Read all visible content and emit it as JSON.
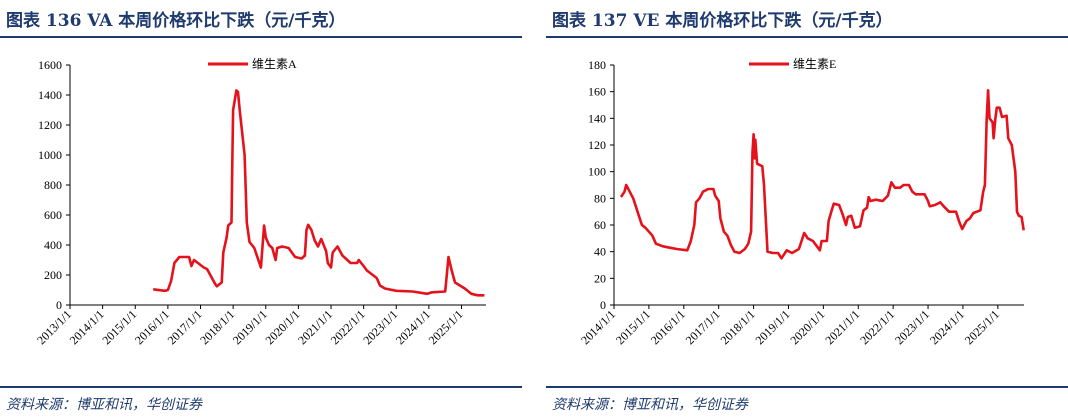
{
  "colors": {
    "accent": "#1f3a6e",
    "line": "#e5121b"
  },
  "chart_data": [
    {
      "type": "line",
      "title": "图表 136 VA 本周价格环比下跌（元/千克）",
      "source": "资料来源：博亚和讯，华创证券",
      "legend": "维生素A",
      "legend_position": "top-center",
      "ylim": [
        0,
        1600
      ],
      "yticks": [
        0,
        200,
        400,
        600,
        800,
        1000,
        1200,
        1400,
        1600
      ],
      "xlim": [
        2013,
        2025.75
      ],
      "xticks": [
        "2013/1/1",
        "2014/1/1",
        "2015/1/1",
        "2016/1/1",
        "2017/1/1",
        "2018/1/1",
        "2019/1/1",
        "2020/1/1",
        "2021/1/1",
        "2022/1/1",
        "2023/1/1",
        "2024/1/1",
        "2025/1/1"
      ],
      "x": [
        2015.55,
        2015.9,
        2016.0,
        2016.1,
        2016.2,
        2016.35,
        2016.65,
        2016.72,
        2016.8,
        2017.1,
        2017.2,
        2017.45,
        2017.5,
        2017.65,
        2017.7,
        2017.8,
        2017.85,
        2017.95,
        2017.97,
        2018.0,
        2018.1,
        2018.15,
        2018.2,
        2018.35,
        2018.42,
        2018.5,
        2018.65,
        2018.85,
        2018.95,
        2019.0,
        2019.1,
        2019.2,
        2019.3,
        2019.35,
        2019.5,
        2019.7,
        2019.9,
        2020.1,
        2020.2,
        2020.25,
        2020.3,
        2020.4,
        2020.5,
        2020.6,
        2020.7,
        2020.85,
        2020.9,
        2021.0,
        2021.05,
        2021.2,
        2021.35,
        2021.5,
        2021.6,
        2021.8,
        2021.85,
        2022.0,
        2022.1,
        2022.4,
        2022.5,
        2022.65,
        2023.0,
        2023.5,
        2023.95,
        2024.1,
        2024.5,
        2024.6,
        2024.7,
        2024.8,
        2024.95,
        2025.1,
        2025.3,
        2025.5,
        2025.7
      ],
      "y": [
        105,
        95,
        100,
        160,
        280,
        320,
        320,
        260,
        300,
        250,
        240,
        140,
        125,
        150,
        350,
        450,
        530,
        550,
        900,
        1300,
        1430,
        1420,
        1300,
        1000,
        550,
        420,
        380,
        250,
        530,
        450,
        400,
        380,
        300,
        380,
        390,
        380,
        320,
        310,
        330,
        500,
        535,
        500,
        430,
        390,
        440,
        360,
        280,
        250,
        350,
        390,
        330,
        300,
        280,
        280,
        300,
        260,
        230,
        180,
        130,
        110,
        95,
        90,
        75,
        85,
        90,
        320,
        230,
        150,
        130,
        110,
        75,
        65,
        65
      ]
    },
    {
      "type": "line",
      "title": "图表 137 VE 本周价格环比下跌（元/千克）",
      "source": "资料来源：博亚和讯，华创证券",
      "legend": "维生素E",
      "legend_position": "top-center",
      "ylim": [
        0,
        180
      ],
      "yticks": [
        0,
        20,
        40,
        60,
        80,
        100,
        120,
        140,
        160,
        180
      ],
      "xlim": [
        2014,
        2025.75
      ],
      "xticks": [
        "2014/1/1",
        "2015/1/1",
        "2016/1/1",
        "2017/1/1",
        "2018/1/1",
        "2019/1/1",
        "2020/1/1",
        "2021/1/1",
        "2022/1/1",
        "2023/1/1",
        "2024/1/1",
        "2025/1/1"
      ],
      "x": [
        2014.2,
        2014.3,
        2014.35,
        2014.45,
        2014.55,
        2014.7,
        2014.8,
        2014.9,
        2015.1,
        2015.2,
        2015.4,
        2015.6,
        2015.8,
        2016.1,
        2016.2,
        2016.3,
        2016.35,
        2016.45,
        2016.55,
        2016.7,
        2016.85,
        2016.9,
        2017.0,
        2017.05,
        2017.15,
        2017.25,
        2017.35,
        2017.45,
        2017.6,
        2017.75,
        2017.85,
        2017.93,
        2017.97,
        2018.0,
        2018.03,
        2018.05,
        2018.1,
        2018.25,
        2018.3,
        2018.4,
        2018.55,
        2018.7,
        2018.8,
        2018.95,
        2019.1,
        2019.3,
        2019.45,
        2019.55,
        2019.7,
        2019.9,
        2019.95,
        2020.1,
        2020.15,
        2020.25,
        2020.3,
        2020.45,
        2020.55,
        2020.65,
        2020.7,
        2020.8,
        2020.9,
        2021.05,
        2021.15,
        2021.25,
        2021.3,
        2021.35,
        2021.5,
        2021.7,
        2021.85,
        2021.95,
        2022.05,
        2022.2,
        2022.3,
        2022.45,
        2022.55,
        2022.65,
        2022.9,
        2023.0,
        2023.05,
        2023.2,
        2023.35,
        2023.45,
        2023.6,
        2023.8,
        2023.9,
        2023.98,
        2024.1,
        2024.2,
        2024.3,
        2024.4,
        2024.5,
        2024.58,
        2024.63,
        2024.68,
        2024.72,
        2024.76,
        2024.85,
        2024.88,
        2024.93,
        2024.97,
        2025.05,
        2025.12,
        2025.25,
        2025.3,
        2025.4,
        2025.5,
        2025.55,
        2025.6,
        2025.68,
        2025.74
      ],
      "y": [
        81,
        85,
        90,
        85,
        80,
        68,
        60,
        58,
        52,
        46,
        44,
        43,
        42,
        41,
        48,
        60,
        77,
        80,
        85,
        87,
        87,
        82,
        78,
        65,
        55,
        52,
        45,
        40,
        39,
        42,
        46,
        55,
        115,
        128,
        110,
        124,
        106,
        104,
        90,
        40,
        39,
        39,
        35,
        41,
        39,
        42,
        54,
        50,
        48,
        41,
        48,
        48,
        63,
        72,
        76,
        75,
        68,
        60,
        66,
        67,
        58,
        59,
        71,
        73,
        81,
        78,
        79,
        78,
        82,
        92,
        88,
        88,
        90,
        90,
        85,
        83,
        83,
        78,
        74,
        75,
        77,
        74,
        70,
        70,
        62,
        57,
        63,
        65,
        69,
        70,
        71,
        85,
        90,
        140,
        161,
        140,
        137,
        125,
        140,
        148,
        148,
        141,
        142,
        125,
        120,
        100,
        70,
        67,
        66,
        56
      ]
    }
  ]
}
